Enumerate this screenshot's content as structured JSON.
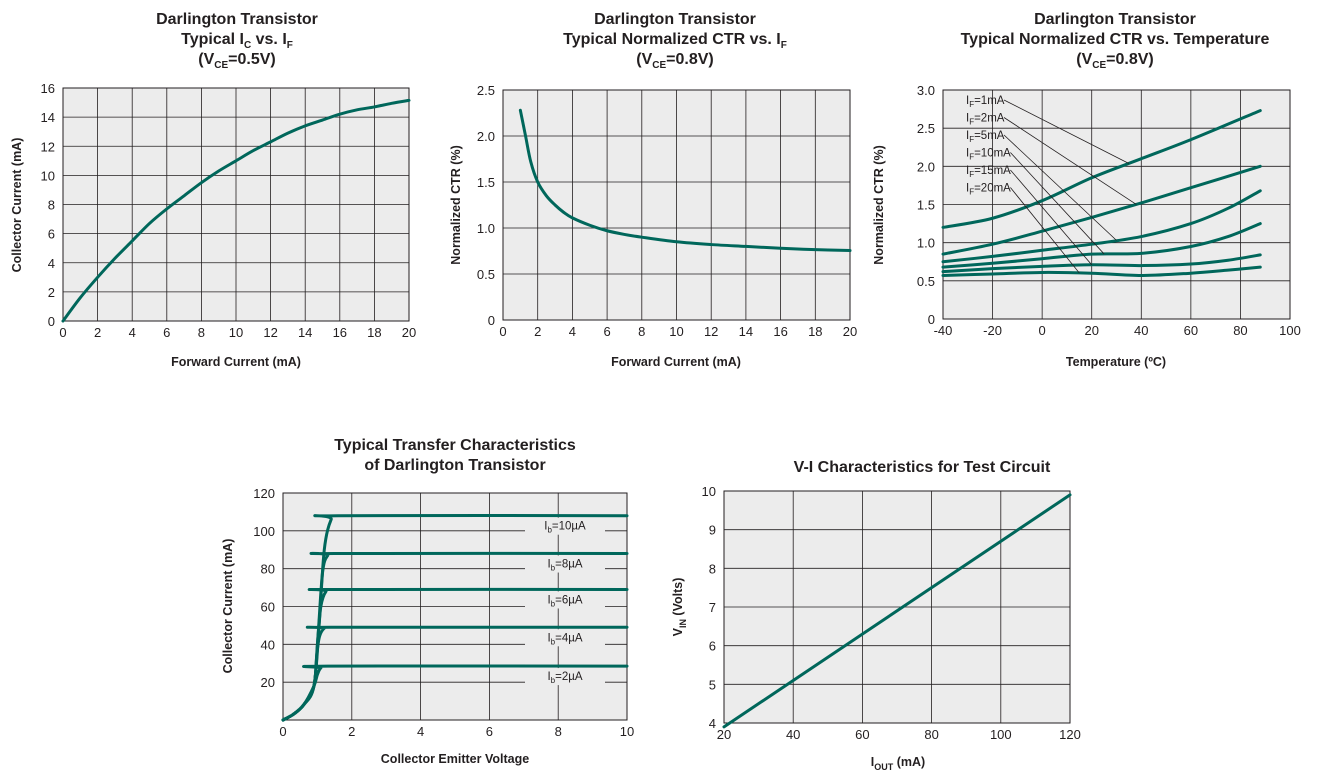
{
  "colors": {
    "curve": "#00675b",
    "plot_bg": "#ececec",
    "grid": "#231f20",
    "text": "#231f20"
  },
  "chart_data": [
    {
      "type": "line",
      "title": {
        "line1": "Darlington Transistor",
        "line2": "Typical I",
        "line2_sub": "C",
        "line2_mid": " vs. I",
        "line2_sub2": "F",
        "line3": "(V",
        "line3_sub": "CE",
        "line3_end": "=0.5V)"
      },
      "xlabel": "Forward Current (mA)",
      "ylabel": "Collector Current (mA)",
      "xlim": [
        0,
        20
      ],
      "ylim": [
        0,
        16
      ],
      "xticks": [
        "0",
        "2",
        "4",
        "6",
        "8",
        "10",
        "12",
        "14",
        "16",
        "18",
        "20"
      ],
      "yticks": [
        "0",
        "2",
        "4",
        "6",
        "8",
        "10",
        "12",
        "14",
        "16"
      ],
      "grid": true,
      "series": [
        {
          "x": [
            0,
            1,
            2,
            3,
            4,
            5,
            6,
            7,
            8,
            9,
            10,
            11,
            12,
            13,
            14,
            15,
            16,
            17,
            18,
            19,
            20
          ],
          "y": [
            0,
            1.6,
            3.0,
            4.3,
            5.5,
            6.7,
            7.7,
            8.6,
            9.5,
            10.3,
            11.0,
            11.7,
            12.3,
            12.9,
            13.4,
            13.8,
            14.2,
            14.5,
            14.7,
            14.95,
            15.15
          ]
        }
      ]
    },
    {
      "type": "line",
      "title": {
        "line1": "Darlington Transistor",
        "line2": "Typical Normalized CTR vs. I",
        "line2_sub": "F",
        "line3": "(V",
        "line3_sub": "CE",
        "line3_end": "=0.8V)"
      },
      "xlabel": "Forward Current (mA)",
      "ylabel": "Normalized CTR (%)",
      "xlim": [
        0,
        20
      ],
      "ylim": [
        0,
        2.5
      ],
      "xticks": [
        "0",
        "2",
        "4",
        "6",
        "8",
        "10",
        "12",
        "14",
        "16",
        "18",
        "20"
      ],
      "yticks": [
        "0",
        "0.5",
        "1.0",
        "1.5",
        "2.0",
        "2.5"
      ],
      "grid": true,
      "series": [
        {
          "x": [
            1,
            1.3,
            1.6,
            2,
            2.5,
            3,
            3.5,
            4,
            5,
            6,
            7,
            8,
            10,
            12,
            14,
            16,
            18,
            20
          ],
          "y": [
            2.28,
            2.0,
            1.72,
            1.5,
            1.35,
            1.25,
            1.17,
            1.11,
            1.03,
            0.97,
            0.93,
            0.9,
            0.85,
            0.82,
            0.8,
            0.78,
            0.765,
            0.755
          ]
        }
      ]
    },
    {
      "type": "line",
      "title": {
        "line1": "Darlington Transistor",
        "line2": "Typical Normalized CTR vs. Temperature",
        "line3": "(V",
        "line3_sub": "CE",
        "line3_end": "=0.8V)"
      },
      "xlabel": "Temperature (ºC)",
      "ylabel": "Normalized CTR (%)",
      "xlim": [
        -40,
        100
      ],
      "ylim": [
        0,
        3.0
      ],
      "xticks": [
        "-40",
        "-20",
        "0",
        "20",
        "40",
        "60",
        "80",
        "100"
      ],
      "yticks": [
        "0",
        "0.5",
        "1.0",
        "1.5",
        "2.0",
        "2.5",
        "3.0"
      ],
      "grid": true,
      "series": [
        {
          "name": "I_F=1mA",
          "label_main": "I",
          "label_sub": "F",
          "label_end": "=1mA",
          "x": [
            -40,
            -20,
            0,
            20,
            40,
            60,
            88
          ],
          "y": [
            1.2,
            1.32,
            1.55,
            1.85,
            2.1,
            2.35,
            2.73
          ]
        },
        {
          "name": "I_F=2mA",
          "label_main": "I",
          "label_sub": "F",
          "label_end": "=2mA",
          "x": [
            -40,
            -20,
            0,
            20,
            40,
            60,
            88
          ],
          "y": [
            0.85,
            0.98,
            1.15,
            1.33,
            1.52,
            1.72,
            2.0
          ]
        },
        {
          "name": "I_F=5mA",
          "label_main": "I",
          "label_sub": "F",
          "label_end": "=5mA",
          "x": [
            -40,
            -20,
            0,
            20,
            40,
            60,
            75,
            88
          ],
          "y": [
            0.75,
            0.82,
            0.9,
            0.98,
            1.08,
            1.25,
            1.45,
            1.68
          ]
        },
        {
          "name": "I_F=10mA",
          "label_main": "I",
          "label_sub": "F",
          "label_end": "=10mA",
          "x": [
            -40,
            -20,
            0,
            20,
            40,
            60,
            75,
            88
          ],
          "y": [
            0.68,
            0.73,
            0.79,
            0.85,
            0.86,
            0.95,
            1.08,
            1.25
          ]
        },
        {
          "name": "I_F=15mA",
          "label_main": "I",
          "label_sub": "F",
          "label_end": "=15mA",
          "x": [
            -40,
            -20,
            0,
            20,
            40,
            60,
            75,
            88
          ],
          "y": [
            0.62,
            0.66,
            0.69,
            0.71,
            0.7,
            0.72,
            0.77,
            0.84
          ]
        },
        {
          "name": "I_F=20mA",
          "label_main": "I",
          "label_sub": "F",
          "label_end": "=20mA",
          "x": [
            -40,
            -20,
            0,
            20,
            40,
            60,
            75,
            88
          ],
          "y": [
            0.57,
            0.59,
            0.61,
            0.6,
            0.57,
            0.6,
            0.64,
            0.68
          ]
        }
      ]
    },
    {
      "type": "line",
      "title": {
        "line1": "Typical Transfer Characteristics",
        "line2": "of Darlington Transistor"
      },
      "xlabel": "Collector Emitter Voltage",
      "ylabel": "Collector Current (mA)",
      "xlim": [
        0,
        10
      ],
      "ylim": [
        0,
        120
      ],
      "xticks": [
        "0",
        "2",
        "4",
        "6",
        "8",
        "10"
      ],
      "yticks": [
        "20",
        "40",
        "60",
        "80",
        "100",
        "120"
      ],
      "grid": true,
      "series": [
        {
          "name": "Ib=10µA",
          "label_main": "I",
          "label_sub": "b",
          "label_end": "=10µA",
          "x": [
            0,
            0.3,
            0.6,
            0.9,
            1.05,
            1.2,
            1.4,
            1.6,
            10
          ],
          "y": [
            0,
            3,
            8,
            18,
            50,
            90,
            106,
            108,
            108
          ]
        },
        {
          "name": "Ib=8µA",
          "label_main": "I",
          "label_sub": "b",
          "label_end": "=8µA",
          "x": [
            0,
            0.3,
            0.6,
            0.9,
            1.02,
            1.15,
            1.3,
            1.5,
            10
          ],
          "y": [
            0,
            3,
            8,
            18,
            45,
            78,
            87,
            88,
            88
          ]
        },
        {
          "name": "Ib=6µA",
          "label_main": "I",
          "label_sub": "b",
          "label_end": "=6µA",
          "x": [
            0,
            0.3,
            0.6,
            0.9,
            1.0,
            1.1,
            1.25,
            1.45,
            10
          ],
          "y": [
            0,
            3,
            8,
            18,
            40,
            60,
            68,
            69,
            69
          ]
        },
        {
          "name": "Ib=4µA",
          "label_main": "I",
          "label_sub": "b",
          "label_end": "=4µA",
          "x": [
            0,
            0.3,
            0.6,
            0.9,
            0.98,
            1.06,
            1.2,
            1.4,
            10
          ],
          "y": [
            0,
            3,
            8,
            18,
            34,
            44,
            48.5,
            49,
            49
          ]
        },
        {
          "name": "Ib=2µA",
          "label_main": "I",
          "label_sub": "b",
          "label_end": "=2µA",
          "x": [
            0,
            0.3,
            0.6,
            0.9,
            1.0,
            1.1,
            1.3,
            10
          ],
          "y": [
            0,
            3,
            8,
            18,
            24,
            27.5,
            28.5,
            28.5
          ]
        }
      ]
    },
    {
      "type": "line",
      "title": {
        "line1": "V-I Characteristics for Test Circuit"
      },
      "xlabel": "I",
      "xlabel_sub": "OUT",
      "xlabel_end": " (mA)",
      "ylabel": "V",
      "ylabel_sub": "IN",
      "ylabel_end": " (Volts)",
      "xlim": [
        20,
        120
      ],
      "ylim": [
        4,
        10
      ],
      "xticks": [
        "20",
        "40",
        "60",
        "80",
        "100",
        "120"
      ],
      "yticks": [
        "4",
        "5",
        "6",
        "7",
        "8",
        "9",
        "10"
      ],
      "grid": true,
      "series": [
        {
          "x": [
            20,
            120
          ],
          "y": [
            3.9,
            9.9
          ]
        }
      ]
    }
  ]
}
